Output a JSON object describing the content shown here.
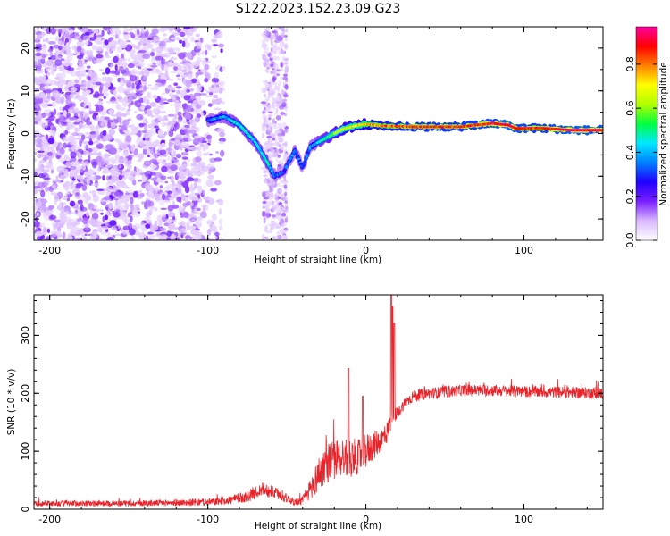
{
  "figure_title": "S122.2023.152.23.09.G23",
  "chart_data": [
    {
      "type": "heatmap",
      "xlabel": "Height of straight line (km)",
      "ylabel": "Frequency (Hz)",
      "xlim": [
        -210,
        150
      ],
      "ylim": [
        -25,
        25
      ],
      "x_ticks": [
        -200,
        -100,
        0,
        100
      ],
      "y_ticks": [
        -20,
        -10,
        0,
        10,
        20
      ],
      "colorbar": {
        "label": "Normalized spectral amplitude",
        "range": [
          0.0,
          0.97
        ],
        "ticks": [
          0.0,
          0.2,
          0.4,
          0.6,
          0.8
        ],
        "colors": [
          "#ffffff",
          "#d9b8ff",
          "#7a1fff",
          "#2000ff",
          "#0080ff",
          "#00e8ff",
          "#00ff40",
          "#b0ff00",
          "#ffff00",
          "#ff8000",
          "#ff0000",
          "#ff00a0"
        ]
      },
      "noise_region_x": [
        -210,
        -100
      ],
      "noise_amplitude_range": [
        0.05,
        0.2
      ],
      "trace": {
        "x": [
          -100,
          -90,
          -80,
          -70,
          -62,
          -58,
          -52,
          -45,
          -40,
          -35,
          -30,
          -25,
          -20,
          -15,
          -10,
          -5,
          0,
          10,
          30,
          60,
          80,
          90,
          95,
          110,
          130,
          150
        ],
        "frequency": [
          3,
          4,
          2,
          -2,
          -7,
          -10,
          -9,
          -4,
          -8,
          -3,
          -2,
          -1,
          0,
          1,
          1.5,
          2,
          2.2,
          1.8,
          1.6,
          1.6,
          2.4,
          2.0,
          1.2,
          1.3,
          0.8,
          0.8
        ],
        "amplitude": [
          0.35,
          0.4,
          0.45,
          0.42,
          0.45,
          0.35,
          0.3,
          0.35,
          0.3,
          0.35,
          0.45,
          0.5,
          0.6,
          0.65,
          0.7,
          0.7,
          0.75,
          0.8,
          0.85,
          0.85,
          0.9,
          0.95,
          0.9,
          0.85,
          0.95,
          0.9
        ]
      }
    },
    {
      "type": "line",
      "xlabel": "Height of straight line (km)",
      "ylabel": "SNR (10 * v/v)",
      "xlim": [
        -210,
        150
      ],
      "ylim": [
        0,
        370
      ],
      "x_ticks": [
        -200,
        -100,
        0,
        100
      ],
      "y_ticks": [
        0,
        100,
        200,
        300
      ],
      "series": [
        {
          "color": "#e8232a",
          "envelope_x": [
            -210,
            -150,
            -100,
            -85,
            -75,
            -65,
            -55,
            -45,
            -40,
            -35,
            -30,
            -25,
            -20,
            -15,
            -10,
            -5,
            0,
            5,
            10,
            14,
            17,
            19,
            20,
            25,
            30,
            40,
            50,
            60,
            80,
            100,
            120,
            150
          ],
          "envelope_mean": [
            10,
            10,
            12,
            16,
            22,
            35,
            25,
            12,
            15,
            35,
            60,
            80,
            85,
            90,
            90,
            90,
            100,
            110,
            120,
            135,
            165,
            160,
            165,
            185,
            195,
            200,
            202,
            205,
            205,
            203,
            202,
            200
          ],
          "envelope_noise": [
            5,
            5,
            6,
            8,
            10,
            12,
            10,
            6,
            8,
            20,
            30,
            35,
            35,
            35,
            35,
            30,
            30,
            25,
            20,
            20,
            15,
            15,
            10,
            10,
            10,
            10,
            10,
            10,
            10,
            10,
            10,
            10
          ],
          "spikes": [
            {
              "x": -11,
              "y": 243
            },
            {
              "x": -2,
              "y": 195
            },
            {
              "x": 16,
              "y": 370
            },
            {
              "x": 17,
              "y": 350
            },
            {
              "x": 18,
              "y": 320
            }
          ]
        }
      ]
    }
  ]
}
